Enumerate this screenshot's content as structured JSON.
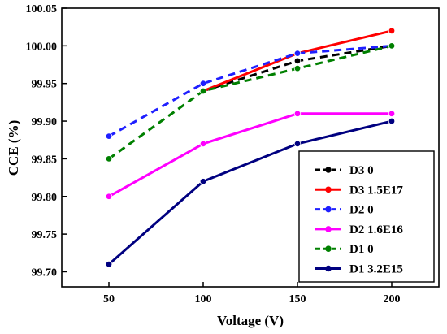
{
  "chart_data": {
    "type": "line",
    "title": "",
    "xlabel": "Voltage (V)",
    "ylabel": "CCE (%)",
    "x": [
      50,
      100,
      150,
      200
    ],
    "x_tick_labels": [
      "50",
      "100",
      "150",
      "200"
    ],
    "xlim": [
      25,
      225
    ],
    "ylim": [
      99.68,
      100.05
    ],
    "y_ticks": [
      99.7,
      99.75,
      99.8,
      99.85,
      99.9,
      99.95,
      100.0,
      100.05
    ],
    "y_tick_labels": [
      "99.70",
      "99.75",
      "99.80",
      "99.85",
      "99.90",
      "99.95",
      "100.00",
      "100.05"
    ],
    "grid": false,
    "legend_position": "bottom-right",
    "series": [
      {
        "name": "D3 0",
        "values": [
          null,
          99.94,
          99.98,
          100.0
        ],
        "color": "#000000",
        "dashed": true
      },
      {
        "name": "D3 1.5E17",
        "values": [
          null,
          99.94,
          99.99,
          100.02
        ],
        "color": "#ff0000",
        "dashed": false
      },
      {
        "name": "D2 0",
        "values": [
          99.88,
          99.95,
          99.99,
          100.0
        ],
        "color": "#1f1fff",
        "dashed": true
      },
      {
        "name": "D2 1.6E16",
        "values": [
          99.8,
          99.87,
          99.91,
          99.91
        ],
        "color": "#ff00ff",
        "dashed": false
      },
      {
        "name": "D1 0",
        "values": [
          99.85,
          99.94,
          99.97,
          100.0
        ],
        "color": "#008000",
        "dashed": true
      },
      {
        "name": "D1 3.2E15",
        "values": [
          99.71,
          99.82,
          99.87,
          99.9
        ],
        "color": "#000080",
        "dashed": false
      }
    ]
  }
}
